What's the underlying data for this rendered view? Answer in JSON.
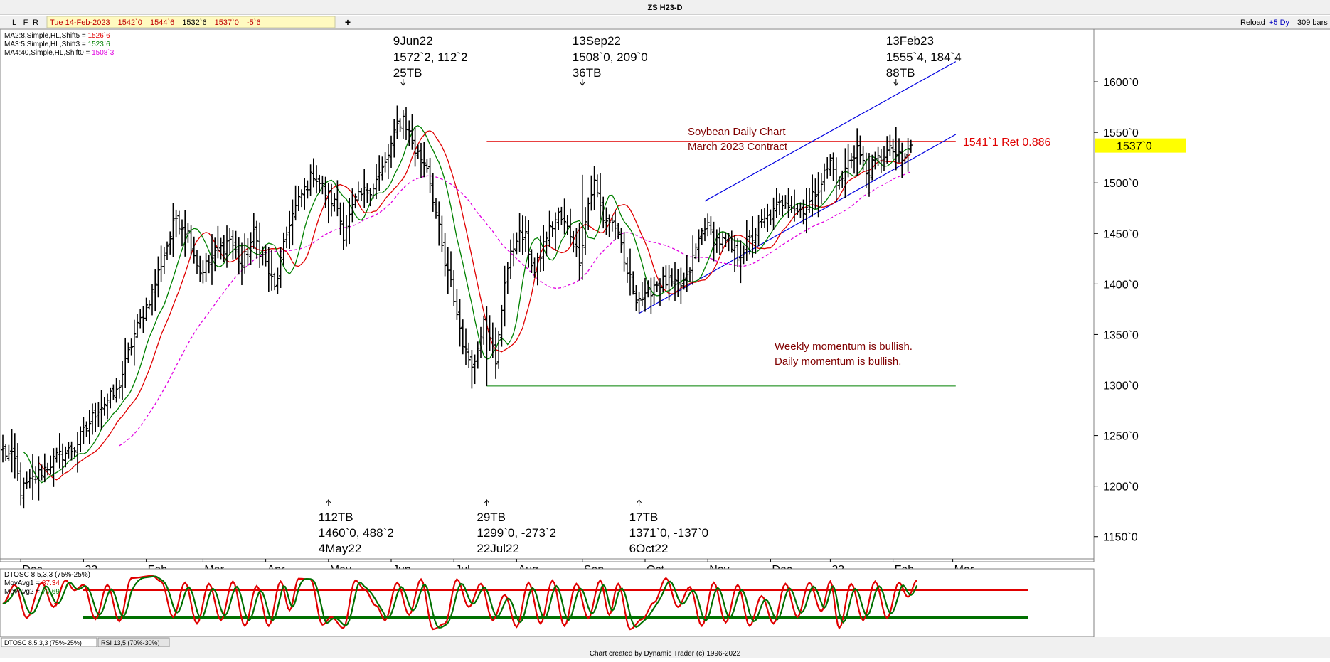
{
  "window": {
    "title": "ZS H23-D",
    "tool_buttons": [
      "L",
      "F",
      "R"
    ],
    "quote_bar": {
      "date": "Tue 14-Feb-2023",
      "open": "1542`0",
      "high": "1544`6",
      "low": "1532`6",
      "close": "1537`0",
      "change": "-5`6"
    },
    "add_tab": "+",
    "reload_label": "Reload",
    "days_label": "+5 Dy",
    "bars_label": "309 bars",
    "footer": "Chart created by Dynamic Trader  (c)  1996-2022",
    "bottom_tabs": [
      "DTOSC 8,5,3,3 (75%-25%)",
      "RSI 13,5 (70%-30%)"
    ]
  },
  "legend": [
    {
      "label": "MA2:8,Simple,HL,Shift5 = ",
      "value": "1526`6",
      "color": "#e00000"
    },
    {
      "label": "MA3:5,Simple,HL,Shift3 = ",
      "value": "1523`6",
      "color": "#008000"
    },
    {
      "label": "MA4:40,Simple,HL,Shift0 = ",
      "value": "1508`3",
      "color": "#e000e0"
    }
  ],
  "chart_data": [
    {
      "type": "ohlc",
      "title": "ZS H23-D",
      "annotations": {
        "title_line1": "Soybean Daily Chart",
        "title_line2": "March 2023 Contract",
        "momentum_line1": "Weekly momentum is bullish.",
        "momentum_line2": "Daily momentum is bullish."
      },
      "y_ticks": [
        {
          "value": 1600,
          "label": "1600`0"
        },
        {
          "value": 1550,
          "label": "1550`0"
        },
        {
          "value": 1500,
          "label": "1500`0"
        },
        {
          "value": 1450,
          "label": "1450`0"
        },
        {
          "value": 1400,
          "label": "1400`0"
        },
        {
          "value": 1350,
          "label": "1350`0"
        },
        {
          "value": 1300,
          "label": "1300`0"
        },
        {
          "value": 1250,
          "label": "1250`0"
        },
        {
          "value": 1200,
          "label": "1200`0"
        },
        {
          "value": 1150,
          "label": "1150`0"
        }
      ],
      "ylim": [
        1128,
        1650
      ],
      "x_months": [
        {
          "label": "Dec",
          "index": 6
        },
        {
          "label": "22",
          "index": 27
        },
        {
          "label": "Feb",
          "index": 48
        },
        {
          "label": "Mar",
          "index": 67
        },
        {
          "label": "Apr",
          "index": 88
        },
        {
          "label": "May",
          "index": 109
        },
        {
          "label": "Jun",
          "index": 130
        },
        {
          "label": "Jul",
          "index": 151
        },
        {
          "label": "Aug",
          "index": 172
        },
        {
          "label": "Sep",
          "index": 194
        },
        {
          "label": "Oct",
          "index": 215
        },
        {
          "label": "Nov",
          "index": 236
        },
        {
          "label": "Dec",
          "index": 257
        },
        {
          "label": "23",
          "index": 277
        },
        {
          "label": "Feb",
          "index": 298
        },
        {
          "label": "Mar",
          "index": 318
        }
      ],
      "price_path": [
        [
          0,
          1235
        ],
        [
          4,
          1225
        ],
        [
          6,
          1195
        ],
        [
          12,
          1212
        ],
        [
          18,
          1228
        ],
        [
          24,
          1238
        ],
        [
          32,
          1278
        ],
        [
          38,
          1292
        ],
        [
          44,
          1350
        ],
        [
          50,
          1392
        ],
        [
          54,
          1430
        ],
        [
          58,
          1466
        ],
        [
          62,
          1450
        ],
        [
          66,
          1412
        ],
        [
          70,
          1425
        ],
        [
          76,
          1445
        ],
        [
          80,
          1418
        ],
        [
          84,
          1448
        ],
        [
          88,
          1420
        ],
        [
          91,
          1395
        ],
        [
          96,
          1462
        ],
        [
          100,
          1488
        ],
        [
          104,
          1510
        ],
        [
          108,
          1490
        ],
        [
          112,
          1476
        ],
        [
          114,
          1450
        ],
        [
          118,
          1482
        ],
        [
          124,
          1498
        ],
        [
          128,
          1518
        ],
        [
          132,
          1556
        ],
        [
          134,
          1565
        ],
        [
          138,
          1532
        ],
        [
          142,
          1518
        ],
        [
          145,
          1470
        ],
        [
          148,
          1418
        ],
        [
          150,
          1400
        ],
        [
          152,
          1370
        ],
        [
          155,
          1330
        ],
        [
          158,
          1322
        ],
        [
          161,
          1370
        ],
        [
          163,
          1352
        ],
        [
          165,
          1318
        ],
        [
          168,
          1405
        ],
        [
          172,
          1448
        ],
        [
          175,
          1445
        ],
        [
          178,
          1410
        ],
        [
          182,
          1448
        ],
        [
          186,
          1468
        ],
        [
          190,
          1450
        ],
        [
          193,
          1425
        ],
        [
          196,
          1480
        ],
        [
          198,
          1500
        ],
        [
          201,
          1465
        ],
        [
          205,
          1458
        ],
        [
          208,
          1420
        ],
        [
          212,
          1388
        ],
        [
          215,
          1385
        ],
        [
          218,
          1400
        ],
        [
          222,
          1402
        ],
        [
          226,
          1396
        ],
        [
          229,
          1404
        ],
        [
          232,
          1435
        ],
        [
          235,
          1460
        ],
        [
          238,
          1445
        ],
        [
          242,
          1440
        ],
        [
          246,
          1428
        ],
        [
          250,
          1442
        ],
        [
          254,
          1460
        ],
        [
          258,
          1470
        ],
        [
          262,
          1485
        ],
        [
          266,
          1472
        ],
        [
          270,
          1480
        ],
        [
          274,
          1502
        ],
        [
          277,
          1520
        ],
        [
          280,
          1498
        ],
        [
          283,
          1520
        ],
        [
          286,
          1535
        ],
        [
          289,
          1510
        ],
        [
          292,
          1520
        ],
        [
          295,
          1528
        ],
        [
          298,
          1532
        ],
        [
          301,
          1520
        ],
        [
          304,
          1537
        ]
      ],
      "highs": [
        {
          "index": 134,
          "price": 1572.25,
          "label_date": "9Jun22",
          "label_price": "1572`2, 112`2",
          "label_bars": "25TB"
        },
        {
          "index": 194,
          "price": 1508.0,
          "label_date": "13Sep22",
          "label_price": "1508`0, 209`0",
          "label_bars": "36TB"
        },
        {
          "index": 299,
          "price": 1555.5,
          "label_date": "13Feb23",
          "label_price": "1555`4, 184`4",
          "label_bars": "88TB"
        }
      ],
      "lows": [
        {
          "index": 109,
          "price": 1460.0,
          "label_date": "4May22",
          "label_price": "1460`0, 488`2",
          "label_bars": "112TB"
        },
        {
          "index": 162,
          "price": 1299.0,
          "label_date": "22Jul22",
          "label_price": "1299`0, -273`2",
          "label_bars": "29TB"
        },
        {
          "index": 213,
          "price": 1371.0,
          "label_date": "6Oct22",
          "label_price": "1371`0, -137`0",
          "label_bars": "17TB"
        }
      ],
      "levels": [
        {
          "name": "high-9jun22",
          "price": 1572.25,
          "from": 134,
          "to": 319,
          "color": "#008000"
        },
        {
          "name": "low-22jul22",
          "price": 1299.0,
          "from": 162,
          "to": 319,
          "color": "#008000"
        },
        {
          "name": "retracement",
          "price": 1541.1,
          "from": 162,
          "to": 319,
          "color": "#e00000",
          "label": "1541`1 Ret 0.886"
        }
      ],
      "channel": {
        "lower": {
          "from": [
            213,
            1371
          ],
          "to": [
            319,
            1548
          ]
        },
        "upper": {
          "from": [
            235,
            1482
          ],
          "to": [
            319,
            1620
          ]
        }
      },
      "last_price": {
        "value": 1537,
        "label": "1537`0"
      }
    },
    {
      "type": "oscillator",
      "title": "DTOSC 8,5,3,3 (75%-25%)",
      "legend": [
        {
          "label": "MovAvg1 = ",
          "value": "87.34",
          "color": "#e00000"
        },
        {
          "label": "MovAvg2 = ",
          "value": "70.69",
          "color": "#008000"
        }
      ],
      "levels": [
        75,
        25
      ],
      "ylim": [
        -5,
        105
      ],
      "pivots": [
        [
          0,
          50
        ],
        [
          4,
          84
        ],
        [
          8,
          24
        ],
        [
          13,
          88
        ],
        [
          17,
          44
        ],
        [
          21,
          92
        ],
        [
          24,
          74
        ],
        [
          27,
          84
        ],
        [
          31,
          22
        ],
        [
          35,
          84
        ],
        [
          39,
          18
        ],
        [
          43,
          96
        ],
        [
          50,
          100
        ],
        [
          53,
          90
        ],
        [
          57,
          26
        ],
        [
          61,
          88
        ],
        [
          65,
          14
        ],
        [
          69,
          86
        ],
        [
          73,
          20
        ],
        [
          77,
          90
        ],
        [
          81,
          10
        ],
        [
          85,
          82
        ],
        [
          89,
          10
        ],
        [
          93,
          90
        ],
        [
          96,
          38
        ],
        [
          99,
          95
        ],
        [
          103,
          94
        ],
        [
          107,
          12
        ],
        [
          110,
          26
        ],
        [
          114,
          6
        ],
        [
          118,
          92
        ],
        [
          121,
          76
        ],
        [
          125,
          46
        ],
        [
          128,
          20
        ],
        [
          132,
          88
        ],
        [
          136,
          30
        ],
        [
          140,
          94
        ],
        [
          144,
          4
        ],
        [
          148,
          14
        ],
        [
          152,
          94
        ],
        [
          156,
          44
        ],
        [
          160,
          86
        ],
        [
          164,
          20
        ],
        [
          168,
          66
        ],
        [
          172,
          8
        ],
        [
          176,
          88
        ],
        [
          180,
          14
        ],
        [
          184,
          92
        ],
        [
          188,
          10
        ],
        [
          192,
          86
        ],
        [
          196,
          24
        ],
        [
          200,
          92
        ],
        [
          203,
          30
        ],
        [
          206,
          86
        ],
        [
          210,
          4
        ],
        [
          214,
          22
        ],
        [
          218,
          52
        ],
        [
          222,
          96
        ],
        [
          226,
          44
        ],
        [
          230,
          80
        ],
        [
          234,
          10
        ],
        [
          238,
          88
        ],
        [
          242,
          16
        ],
        [
          246,
          84
        ],
        [
          250,
          10
        ],
        [
          254,
          64
        ],
        [
          258,
          14
        ],
        [
          262,
          86
        ],
        [
          266,
          26
        ],
        [
          270,
          88
        ],
        [
          274,
          36
        ],
        [
          277,
          90
        ],
        [
          280,
          6
        ],
        [
          284,
          86
        ],
        [
          288,
          20
        ],
        [
          292,
          90
        ],
        [
          296,
          24
        ],
        [
          300,
          88
        ],
        [
          303,
          62
        ],
        [
          306,
          92
        ]
      ]
    }
  ]
}
